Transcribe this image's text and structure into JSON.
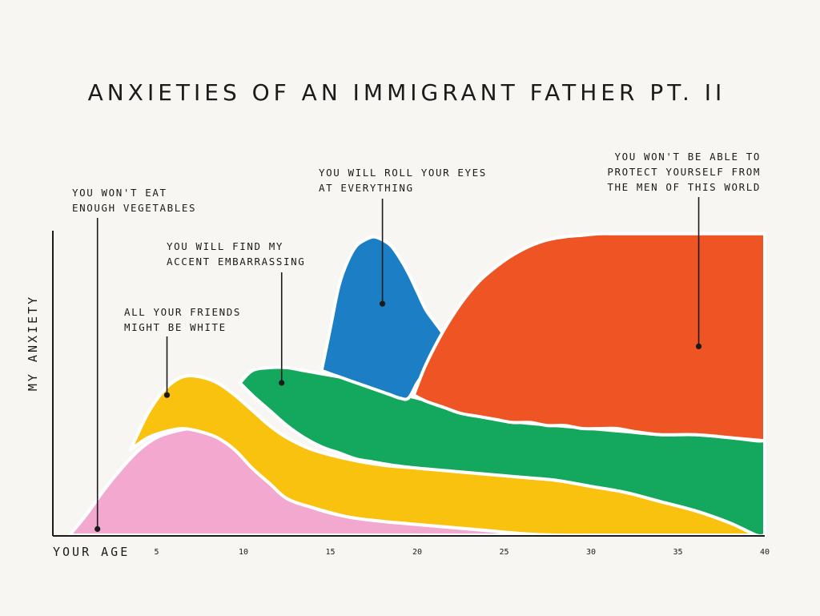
{
  "chart_data": {
    "type": "area",
    "title": "ANXIETIES OF AN IMMIGRANT FATHER PT. II",
    "xlabel": "YOUR AGE",
    "ylabel": "MY ANXIETY",
    "xlim": [
      0,
      40
    ],
    "ylim": [
      0,
      10
    ],
    "x_ticks": [
      5,
      10,
      15,
      20,
      25,
      30,
      35,
      40
    ],
    "grid": false,
    "legend": "none",
    "series": [
      {
        "name": "YOU WON'T EAT ENOUGH VEGETABLES",
        "color": "#f3a8d0",
        "x": [
          0,
          1,
          2,
          3,
          4,
          5,
          6,
          7,
          8,
          9,
          10,
          11,
          12,
          13,
          14,
          16,
          18,
          20,
          22,
          24,
          26,
          27.5
        ],
        "upper": [
          0,
          0.7,
          1.5,
          2.2,
          2.8,
          3.2,
          3.4,
          3.5,
          3.4,
          3.2,
          2.8,
          2.2,
          1.7,
          1.2,
          0.9,
          0.6,
          0.45,
          0.35,
          0.25,
          0.15,
          0.05,
          0
        ],
        "lower": [
          0,
          0,
          0,
          0,
          0,
          0,
          0,
          0,
          0,
          0,
          0,
          0,
          0,
          0,
          0,
          0,
          0,
          0,
          0,
          0,
          0,
          0
        ],
        "annotation_x": 1.6,
        "annotation_y": 0.2
      },
      {
        "name": "ALL YOUR FRIENDS MIGHT BE WHITE",
        "color": "#f8c20f",
        "x": [
          3.5,
          4.5,
          5.5,
          6.5,
          7.5,
          8.5,
          9.5,
          10.5,
          11.5,
          12.5,
          14,
          16,
          18,
          20,
          22,
          24,
          26,
          28,
          30,
          32,
          34,
          36,
          38,
          39.5
        ],
        "upper": [
          2.8,
          4.0,
          4.8,
          5.2,
          5.2,
          5.0,
          4.6,
          4.1,
          3.6,
          3.2,
          2.8,
          2.5,
          2.3,
          2.2,
          2.1,
          2.0,
          1.9,
          1.8,
          1.6,
          1.4,
          1.1,
          0.8,
          0.4,
          0
        ],
        "lower": [
          2.8,
          3.2,
          3.4,
          3.5,
          3.4,
          3.2,
          2.8,
          2.2,
          1.7,
          1.2,
          0.9,
          0.6,
          0.45,
          0.35,
          0.25,
          0.15,
          0.05,
          0,
          0,
          0,
          0,
          0,
          0,
          0
        ],
        "annotation_x": 5.6,
        "annotation_y": 4.6
      },
      {
        "name": "YOU WILL FIND MY ACCENT EMBARRASSING",
        "color": "#14a85e",
        "x": [
          9.8,
          10.5,
          11.5,
          12.5,
          13.5,
          14.5,
          15.5,
          16.5,
          17.5,
          18.5,
          20,
          22,
          24,
          26,
          28,
          30,
          32,
          34,
          36,
          38,
          39.5,
          40
        ],
        "upper": [
          5.0,
          5.4,
          5.5,
          5.5,
          5.4,
          5.3,
          5.2,
          5.1,
          4.9,
          4.7,
          4.5,
          4.2,
          3.9,
          3.7,
          3.6,
          3.5,
          3.4,
          3.3,
          3.3,
          3.2,
          3.1,
          3.1
        ],
        "lower": [
          5.0,
          4.6,
          4.1,
          3.6,
          3.2,
          2.9,
          2.7,
          2.5,
          2.4,
          2.3,
          2.2,
          2.1,
          2.0,
          1.9,
          1.8,
          1.6,
          1.4,
          1.1,
          0.8,
          0.4,
          0,
          0
        ],
        "annotation_x": 12.2,
        "annotation_y": 5.0
      },
      {
        "name": "YOU WILL ROLL YOUR EYES AT EVERYTHING",
        "color": "#1c7fc6",
        "x": [
          14.5,
          15.0,
          15.5,
          16.0,
          16.5,
          17.0,
          17.5,
          18.0,
          18.5,
          19.0,
          19.5,
          20.0,
          20.5,
          21.0,
          21.5,
          22.0
        ],
        "upper": [
          5.4,
          6.8,
          8.2,
          9.0,
          9.5,
          9.7,
          9.8,
          9.7,
          9.5,
          9.1,
          8.6,
          8.0,
          7.4,
          7.0,
          6.6,
          6.0
        ],
        "lower": [
          5.4,
          5.3,
          5.2,
          5.1,
          5.0,
          4.9,
          4.8,
          4.7,
          4.6,
          4.5,
          4.5,
          5.0,
          5.4,
          5.8,
          6.0,
          6.0
        ],
        "annotation_x": 18.0,
        "annotation_y": 7.6
      },
      {
        "name": "YOU WON'T BE ABLE TO PROTECT YOURSELF FROM THE MEN OF THIS WORLD",
        "color": "#ee5424",
        "x": [
          19.8,
          20.5,
          21.5,
          22.5,
          23.5,
          24.5,
          25.5,
          26.5,
          27.5,
          28.5,
          29.5,
          30.5,
          31.5,
          32.5,
          34,
          36,
          38,
          40
        ],
        "upper": [
          4.6,
          5.6,
          6.7,
          7.6,
          8.3,
          8.8,
          9.2,
          9.5,
          9.7,
          9.8,
          9.85,
          9.9,
          9.9,
          9.9,
          9.9,
          9.9,
          9.9,
          9.9
        ],
        "lower": [
          4.6,
          4.4,
          4.2,
          4.0,
          3.9,
          3.8,
          3.7,
          3.7,
          3.6,
          3.6,
          3.5,
          3.5,
          3.5,
          3.4,
          3.3,
          3.3,
          3.2,
          3.1
        ],
        "annotation_x": 36.2,
        "annotation_y": 6.2
      }
    ]
  }
}
